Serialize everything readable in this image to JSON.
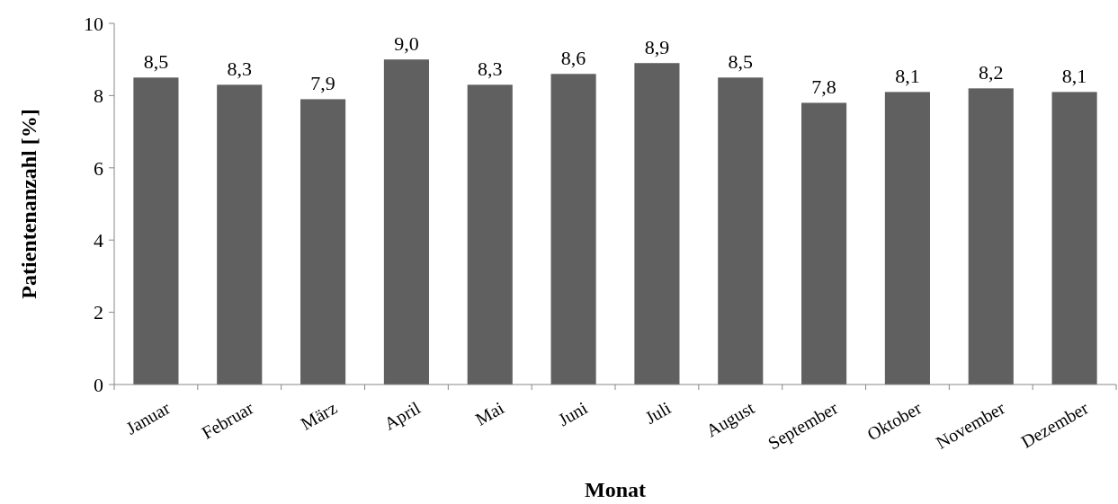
{
  "chart_data": {
    "type": "bar",
    "xlabel": "Monat",
    "ylabel": "Patientenanzahl [%]",
    "categories": [
      "Januar",
      "Februar",
      "März",
      "April",
      "Mai",
      "Juni",
      "Juli",
      "August",
      "September",
      "Oktober",
      "November",
      "Dezember"
    ],
    "values": [
      8.5,
      8.3,
      7.9,
      9.0,
      8.3,
      8.6,
      8.9,
      8.5,
      7.8,
      8.1,
      8.2,
      8.1
    ],
    "value_labels": [
      "8,5",
      "8,3",
      "7,9",
      "9,0",
      "8,3",
      "8,6",
      "8,9",
      "8,5",
      "7,8",
      "8,1",
      "8,2",
      "8,1"
    ],
    "color": "#606060",
    "ylim": [
      0,
      10
    ],
    "yticks": [
      0,
      2,
      4,
      6,
      8,
      10
    ],
    "grid": false
  }
}
